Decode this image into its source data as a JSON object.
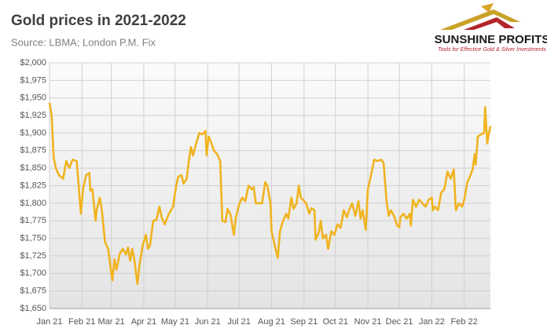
{
  "chart_data": {
    "type": "line",
    "title": "Gold prices in 2021-2022",
    "subtitle": "Source: LBMA; London P.M. Fix",
    "logo": {
      "name": "SUNSHINE PROFITS",
      "tagline": "Tools for Effective Gold & Silver Investments"
    },
    "color": "#f0b31f",
    "grid": true,
    "xlim": [
      0,
      421
    ],
    "xticks": [
      {
        "value": 0,
        "label": "Jan 21"
      },
      {
        "value": 31,
        "label": "Feb 21"
      },
      {
        "value": 59,
        "label": "Mar 21"
      },
      {
        "value": 90,
        "label": "Apr 21"
      },
      {
        "value": 120,
        "label": "May 21"
      },
      {
        "value": 151,
        "label": "Jun 21"
      },
      {
        "value": 181,
        "label": "Jul 21"
      },
      {
        "value": 212,
        "label": "Aug 21"
      },
      {
        "value": 243,
        "label": "Sep 21"
      },
      {
        "value": 273,
        "label": "Oct 21"
      },
      {
        "value": 304,
        "label": "Nov 21"
      },
      {
        "value": 334,
        "label": "Dec 21"
      },
      {
        "value": 365,
        "label": "Jan 22"
      },
      {
        "value": 396,
        "label": "Feb 22"
      }
    ],
    "ylim": [
      1650,
      2000
    ],
    "yticks": [
      {
        "value": 1650,
        "label": "$1,650"
      },
      {
        "value": 1675,
        "label": "$1,675"
      },
      {
        "value": 1700,
        "label": "$1,700"
      },
      {
        "value": 1725,
        "label": "$1,725"
      },
      {
        "value": 1750,
        "label": "$1,750"
      },
      {
        "value": 1775,
        "label": "$1,775"
      },
      {
        "value": 1800,
        "label": "$1,800"
      },
      {
        "value": 1825,
        "label": "$1,825"
      },
      {
        "value": 1850,
        "label": "$1,850"
      },
      {
        "value": 1875,
        "label": "$1,875"
      },
      {
        "value": 1900,
        "label": "$1,900"
      },
      {
        "value": 1925,
        "label": "$1,925"
      },
      {
        "value": 1950,
        "label": "$1,950"
      },
      {
        "value": 1975,
        "label": "$1,975"
      },
      {
        "value": 2000,
        "label": "$2,000"
      }
    ],
    "x": [
      0,
      2,
      4,
      6,
      9,
      13,
      16,
      19,
      22,
      26,
      30,
      32,
      35,
      38,
      39,
      41,
      44,
      45,
      48,
      50,
      53,
      56,
      58,
      60,
      62,
      64,
      67,
      70,
      73,
      75,
      77,
      79,
      81,
      84,
      86,
      89,
      92,
      94,
      96,
      99,
      102,
      105,
      107,
      110,
      114,
      118,
      121,
      123,
      126,
      128,
      131,
      133,
      135,
      137,
      140,
      143,
      146,
      149,
      150,
      152,
      154,
      157,
      160,
      163,
      165,
      168,
      170,
      173,
      176,
      178,
      181,
      184,
      187,
      190,
      193,
      195,
      197,
      200,
      203,
      206,
      208,
      211,
      212,
      215,
      218,
      220,
      223,
      226,
      228,
      231,
      233,
      236,
      238,
      240,
      242,
      245,
      248,
      250,
      253,
      254,
      257,
      259,
      261,
      264,
      266,
      269,
      272,
      275,
      278,
      281,
      284,
      286,
      289,
      292,
      295,
      297,
      299,
      302,
      304,
      307,
      310,
      313,
      317,
      319,
      322,
      324,
      326,
      329,
      332,
      334,
      335,
      338,
      341,
      344,
      345,
      347,
      350,
      353,
      356,
      359,
      362,
      365,
      366,
      368,
      371,
      374,
      377,
      380,
      383,
      386,
      388,
      391,
      394,
      396,
      399,
      402,
      404,
      406,
      407,
      409,
      412,
      415,
      416,
      418,
      419,
      421
    ],
    "values": [
      1943,
      1925,
      1865,
      1850,
      1840,
      1835,
      1860,
      1850,
      1862,
      1860,
      1785,
      1820,
      1840,
      1843,
      1818,
      1820,
      1775,
      1790,
      1808,
      1790,
      1745,
      1735,
      1712,
      1690,
      1720,
      1705,
      1728,
      1735,
      1727,
      1737,
      1718,
      1735,
      1720,
      1685,
      1713,
      1740,
      1755,
      1735,
      1740,
      1775,
      1776,
      1795,
      1780,
      1770,
      1785,
      1795,
      1825,
      1838,
      1840,
      1828,
      1835,
      1860,
      1880,
      1868,
      1885,
      1900,
      1898,
      1903,
      1868,
      1895,
      1888,
      1875,
      1870,
      1860,
      1775,
      1773,
      1792,
      1783,
      1755,
      1780,
      1798,
      1808,
      1803,
      1825,
      1820,
      1823,
      1800,
      1800,
      1800,
      1830,
      1825,
      1800,
      1760,
      1740,
      1722,
      1760,
      1775,
      1785,
      1778,
      1808,
      1792,
      1800,
      1825,
      1808,
      1805,
      1800,
      1785,
      1793,
      1790,
      1748,
      1758,
      1775,
      1750,
      1755,
      1735,
      1760,
      1755,
      1770,
      1765,
      1790,
      1780,
      1790,
      1800,
      1782,
      1803,
      1778,
      1790,
      1762,
      1820,
      1840,
      1862,
      1860,
      1862,
      1857,
      1800,
      1782,
      1790,
      1782,
      1768,
      1766,
      1780,
      1785,
      1778,
      1785,
      1768,
      1805,
      1795,
      1805,
      1800,
      1795,
      1805,
      1808,
      1790,
      1795,
      1790,
      1815,
      1820,
      1845,
      1835,
      1848,
      1790,
      1800,
      1795,
      1805,
      1830,
      1840,
      1848,
      1870,
      1855,
      1895,
      1898,
      1900,
      1937,
      1885,
      1895,
      1910
    ]
  }
}
